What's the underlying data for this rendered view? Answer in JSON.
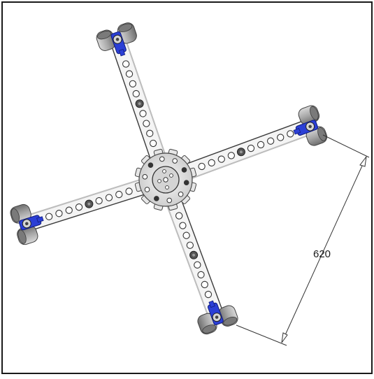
{
  "figure": {
    "dimension_label": "620",
    "arm_count": 4,
    "colors": {
      "background": "#ffffff",
      "frame": "#1a1a1a",
      "arm_fill": "#f4f4f4",
      "arm_stroke": "#3a3a3a",
      "hub_fill": "#eeeeee",
      "clamp_blue": "#2b3fd6",
      "foot_gray": "#9c9c9c",
      "dimension_line": "#333333"
    }
  }
}
